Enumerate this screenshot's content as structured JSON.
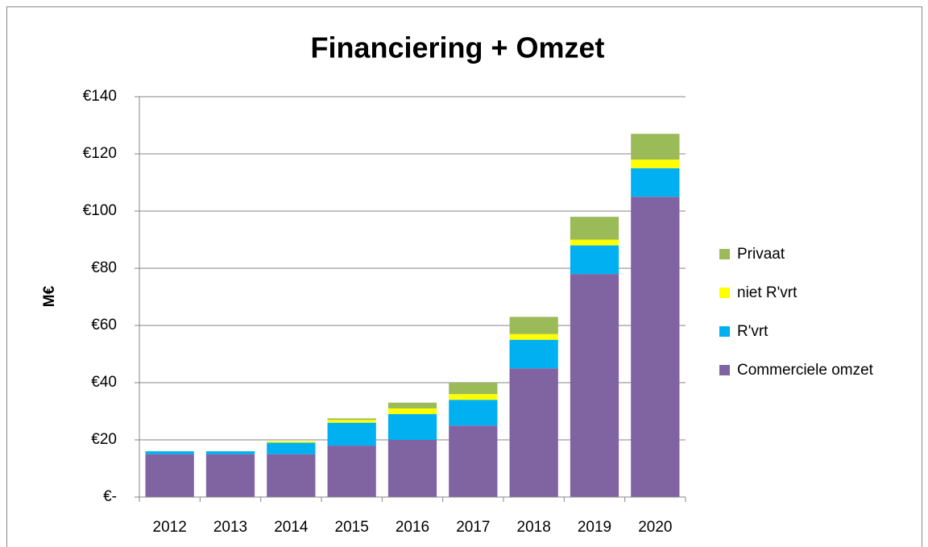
{
  "chart_data": {
    "type": "stacked-bar",
    "title": "Financiering + Omzet",
    "y_label": "M€",
    "categories": [
      "2012",
      "2013",
      "2014",
      "2015",
      "2016",
      "2017",
      "2018",
      "2019",
      "2020"
    ],
    "series": [
      {
        "name": "Commerciele omzet",
        "color": "#8064a2",
        "values": [
          15,
          15,
          15,
          18,
          20,
          25,
          45,
          78,
          105
        ]
      },
      {
        "name": "R'vrt",
        "color": "#00b0f0",
        "values": [
          1,
          1,
          4,
          8,
          9,
          9,
          10,
          10,
          10
        ]
      },
      {
        "name": "niet R'vrt",
        "color": "#ffff00",
        "values": [
          0,
          0,
          0.5,
          1,
          2,
          2,
          2,
          2,
          3
        ]
      },
      {
        "name": "Privaat",
        "color": "#9bbb59",
        "values": [
          0,
          0,
          0,
          0.5,
          2,
          4,
          6,
          8,
          9
        ]
      }
    ],
    "ylim": [
      0,
      140
    ],
    "yticks": [
      {
        "value": 0,
        "label": "€-"
      },
      {
        "value": 20,
        "label": "€20"
      },
      {
        "value": 40,
        "label": "€40"
      },
      {
        "value": 60,
        "label": "€60"
      },
      {
        "value": 80,
        "label": "€80"
      },
      {
        "value": 100,
        "label": "€100"
      },
      {
        "value": 120,
        "label": "€120"
      },
      {
        "value": 140,
        "label": "€140"
      }
    ],
    "grid": true,
    "legend": "right"
  }
}
